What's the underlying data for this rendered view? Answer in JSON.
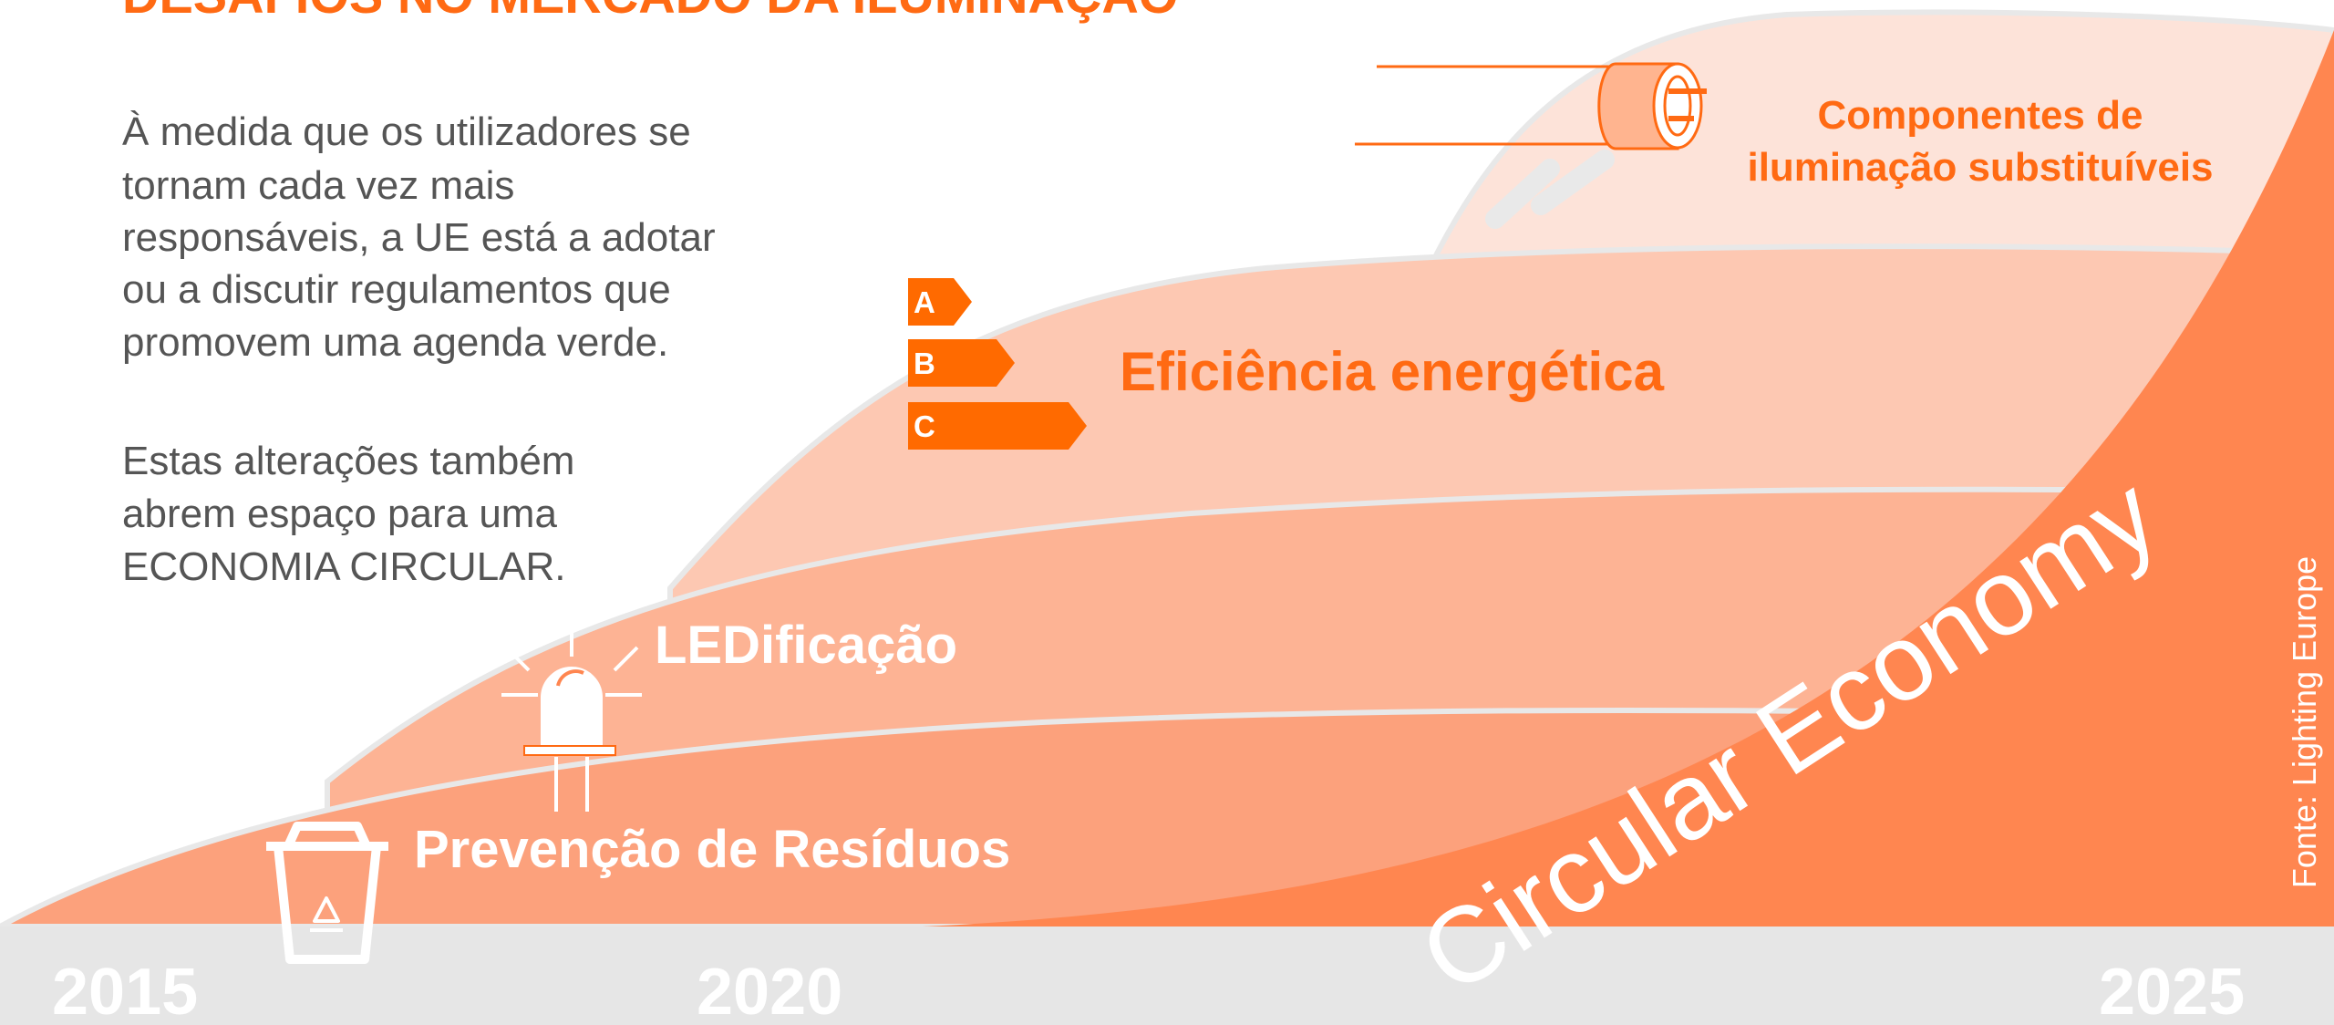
{
  "header": {
    "title": "DESAFIOS NO MERCADO DA ILUMINAÇÃO"
  },
  "intro": {
    "paragraph_1": [
      "À medida que os utilizadores se",
      "tornam cada vez mais",
      "responsáveis, a UE está a adotar",
      "ou a discutir regulamentos que",
      "promovem uma agenda verde."
    ],
    "paragraph_2": [
      "Estas alterações também",
      "abrem espaço para uma",
      "ECONOMIA CIRCULAR."
    ]
  },
  "layers": {
    "components": [
      "Componentes de",
      "iluminação substituíveis"
    ],
    "efficiency": "Eficiência energética",
    "energy_classes": [
      "A",
      "B",
      "C"
    ],
    "ledification": "LEDificação",
    "waste_prevention": "Prevenção de Resíduos",
    "circular_economy": "Circular Economy"
  },
  "timeline": [
    "2015",
    "2020",
    "2025"
  ],
  "source": "Fonte: Lighting Europe"
}
